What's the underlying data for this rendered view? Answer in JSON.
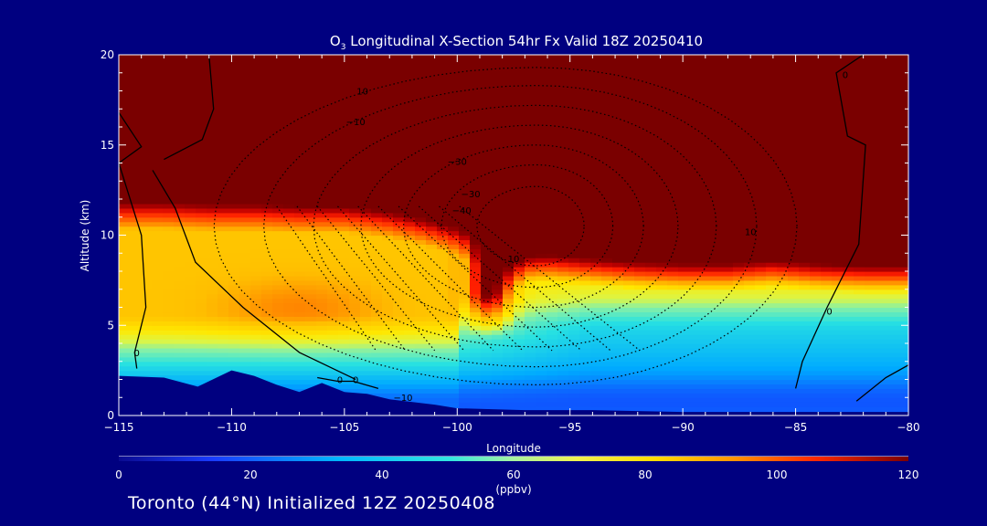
{
  "chart_data": {
    "type": "heatmap",
    "title": {
      "prefix": "O",
      "subscript": "3",
      "text": " Longitudinal X-Section 54hr  Fx Valid 18Z 20250410"
    },
    "xlabel": "Longitude",
    "ylabel": "Altitude (km)",
    "xlim": [
      -115,
      -80
    ],
    "ylim": [
      0,
      20
    ],
    "x_ticks": [
      -115,
      -110,
      -105,
      -100,
      -95,
      -90,
      -85,
      -80
    ],
    "x_tick_labels": [
      "−115",
      "−110",
      "−105",
      "−100",
      "−95",
      "−90",
      "−85",
      "−80"
    ],
    "y_ticks": [
      0,
      5,
      10,
      15,
      20
    ],
    "y_tick_labels": [
      "0",
      "5",
      "10",
      "15",
      "20"
    ],
    "colorbar": {
      "label": "(ppbv)",
      "range": [
        0,
        120
      ],
      "ticks": [
        0,
        20,
        40,
        60,
        80,
        100,
        120
      ],
      "tick_labels": [
        "0",
        "20",
        "40",
        "60",
        "80",
        "100",
        "120"
      ]
    },
    "tropopause_km": [
      [
        -115,
        11.9
      ],
      [
        -113,
        11.9
      ],
      [
        -111,
        11.8
      ],
      [
        -109,
        11.8
      ],
      [
        -107,
        11.7
      ],
      [
        -105,
        11.7
      ],
      [
        -103,
        11.4
      ],
      [
        -101.5,
        11.0
      ],
      [
        -100,
        10.5
      ],
      [
        -99,
        9.8
      ],
      [
        -98.5,
        8.8
      ],
      [
        -98.2,
        8.3
      ],
      [
        -97.6,
        8.4
      ],
      [
        -97,
        8.9
      ],
      [
        -96,
        9.0
      ],
      [
        -94,
        8.8
      ],
      [
        -92,
        8.6
      ],
      [
        -90,
        8.5
      ],
      [
        -88,
        8.5
      ],
      [
        -86,
        8.7
      ],
      [
        -84,
        8.5
      ],
      [
        -82,
        8.4
      ],
      [
        -80,
        8.4
      ]
    ],
    "intrusion_tip": {
      "lon": -98.6,
      "alt_km": 5.3
    },
    "mid_level_max": {
      "lon": -107,
      "alt_km": 6.0,
      "value": 85
    },
    "surface_min_value": 12,
    "terrain_km": [
      [
        -115,
        2.2
      ],
      [
        -113,
        2.1
      ],
      [
        -111.5,
        1.6
      ],
      [
        -110,
        2.5
      ],
      [
        -109,
        2.2
      ],
      [
        -108,
        1.7
      ],
      [
        -107,
        1.3
      ],
      [
        -106,
        1.8
      ],
      [
        -105,
        1.3
      ],
      [
        -104,
        1.2
      ],
      [
        -103,
        0.9
      ],
      [
        -101,
        0.6
      ],
      [
        -100,
        0.4
      ],
      [
        -97,
        0.3
      ],
      [
        -94,
        0.3
      ],
      [
        -90,
        0.2
      ],
      [
        -85,
        0.2
      ],
      [
        -80,
        0.2
      ]
    ],
    "contour_labels": [
      {
        "lon": -104.2,
        "alt_km": 17.8,
        "text": "10"
      },
      {
        "lon": -104.5,
        "alt_km": 16.1,
        "text": "−10"
      },
      {
        "lon": -100.0,
        "alt_km": 13.9,
        "text": "−30"
      },
      {
        "lon": -99.4,
        "alt_km": 12.1,
        "text": "−30"
      },
      {
        "lon": -99.8,
        "alt_km": 11.2,
        "text": "−40"
      },
      {
        "lon": -97.5,
        "alt_km": 8.5,
        "text": "10"
      },
      {
        "lon": -87.0,
        "alt_km": 10.0,
        "text": "10"
      },
      {
        "lon": -83.5,
        "alt_km": 5.6,
        "text": "0"
      },
      {
        "lon": -82.8,
        "alt_km": 18.7,
        "text": "0"
      },
      {
        "lon": -114.2,
        "alt_km": 3.3,
        "text": "0"
      },
      {
        "lon": -105.2,
        "alt_km": 1.8,
        "text": "0"
      },
      {
        "lon": -104.5,
        "alt_km": 1.8,
        "text": "0"
      },
      {
        "lon": -102.4,
        "alt_km": 0.8,
        "text": "−10"
      }
    ]
  },
  "footer": "Toronto (44°N) Initialized 12Z 20250408"
}
